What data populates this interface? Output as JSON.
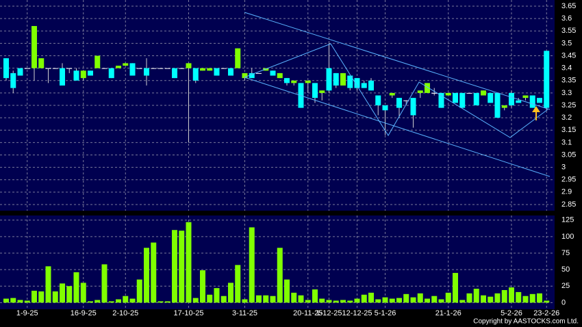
{
  "chart_data": {
    "type": "candlestick",
    "categories": [
      null,
      null,
      null,
      "1-9-25",
      null,
      null,
      null,
      null,
      null,
      null,
      null,
      "16-9-25",
      null,
      null,
      null,
      null,
      null,
      "2-10-25",
      null,
      null,
      null,
      null,
      null,
      null,
      null,
      null,
      "17-10-25",
      null,
      null,
      null,
      null,
      null,
      null,
      null,
      "3-11-25",
      null,
      null,
      null,
      null,
      null,
      null,
      null,
      null,
      "20-11-25",
      null,
      null,
      "1-12-25",
      null,
      null,
      null,
      "12-12-25",
      null,
      null,
      null,
      "5-1-26",
      null,
      null,
      null,
      null,
      null,
      null,
      null,
      null,
      "21-1-26",
      null,
      null,
      null,
      null,
      null,
      null,
      null,
      null,
      "5-2-26",
      null,
      null,
      null,
      null,
      "23-2-26"
    ],
    "open": [
      3.36,
      3.32,
      3.37,
      3.4,
      3.57,
      3.44,
      3.4,
      3.4,
      3.33,
      3.4,
      3.35,
      3.39,
      3.37,
      3.45,
      3.4,
      3.36,
      3.41,
      3.42,
      3.37,
      3.4,
      3.37,
      3.4,
      3.4,
      3.4,
      3.36,
      3.4,
      3.42,
      3.35,
      3.4,
      3.4,
      3.37,
      3.4,
      3.37,
      3.48,
      3.38,
      3.36,
      3.38,
      3.4,
      3.37,
      3.38,
      3.34,
      3.35,
      3.24,
      3.35,
      3.28,
      3.31,
      3.31,
      3.33,
      3.38,
      3.32,
      3.32,
      3.32,
      3.31,
      3.25,
      3.23,
      3.3,
      3.24,
      3.27,
      3.21,
      3.31,
      3.34,
      3.3,
      3.24,
      3.3,
      3.26,
      3.24,
      3.3,
      3.25,
      3.31,
      3.26,
      3.2,
      3.25,
      3.25,
      3.26,
      3.29,
      3.24,
      3.26,
      3.24
    ],
    "high": [
      3.44,
      3.39,
      3.4,
      3.4,
      3.57,
      3.44,
      3.4,
      3.4,
      3.42,
      3.4,
      3.4,
      3.39,
      3.39,
      3.45,
      3.4,
      3.4,
      3.41,
      3.42,
      3.42,
      3.4,
      3.44,
      3.4,
      3.4,
      3.4,
      3.4,
      3.4,
      3.42,
      3.4,
      3.4,
      3.4,
      3.4,
      3.4,
      3.4,
      3.48,
      3.38,
      3.4,
      3.38,
      3.4,
      3.39,
      3.38,
      3.36,
      3.35,
      3.34,
      3.35,
      3.34,
      3.31,
      3.5,
      3.38,
      3.38,
      3.37,
      3.36,
      3.35,
      3.36,
      3.29,
      3.25,
      3.3,
      3.28,
      3.27,
      3.28,
      3.31,
      3.34,
      3.32,
      3.3,
      3.3,
      3.3,
      3.3,
      3.3,
      3.3,
      3.31,
      3.3,
      3.3,
      3.25,
      3.31,
      3.28,
      3.29,
      3.29,
      3.28,
      3.47
    ],
    "low": [
      3.35,
      3.3,
      3.37,
      3.4,
      3.35,
      3.4,
      3.34,
      3.4,
      3.33,
      3.38,
      3.35,
      3.35,
      3.37,
      3.4,
      3.4,
      3.36,
      3.4,
      3.41,
      3.37,
      3.4,
      3.33,
      3.4,
      3.4,
      3.4,
      3.36,
      3.4,
      3.1,
      3.34,
      3.39,
      3.39,
      3.37,
      3.4,
      3.37,
      3.4,
      3.35,
      3.36,
      3.38,
      3.39,
      3.37,
      3.36,
      3.33,
      3.33,
      3.24,
      3.3,
      3.26,
      3.27,
      3.3,
      3.32,
      3.33,
      3.31,
      3.31,
      3.32,
      3.31,
      3.21,
      3.13,
      3.28,
      3.2,
      3.25,
      3.16,
      3.28,
      3.3,
      3.29,
      3.24,
      3.29,
      3.26,
      3.24,
      3.3,
      3.25,
      3.29,
      3.26,
      3.2,
      3.23,
      3.24,
      3.26,
      3.27,
      3.24,
      3.26,
      3.23
    ],
    "close": [
      3.44,
      3.38,
      3.4,
      3.4,
      3.4,
      3.4,
      3.4,
      3.4,
      3.4,
      3.4,
      3.39,
      3.36,
      3.39,
      3.4,
      3.4,
      3.4,
      3.4,
      3.41,
      3.42,
      3.4,
      3.4,
      3.4,
      3.4,
      3.4,
      3.4,
      3.4,
      3.4,
      3.4,
      3.39,
      3.39,
      3.4,
      3.4,
      3.4,
      3.4,
      3.36,
      3.38,
      3.38,
      3.39,
      3.39,
      3.36,
      3.36,
      3.34,
      3.34,
      3.34,
      3.34,
      3.3,
      3.4,
      3.38,
      3.33,
      3.37,
      3.36,
      3.34,
      3.35,
      3.29,
      3.25,
      3.29,
      3.28,
      3.27,
      3.28,
      3.3,
      3.3,
      3.3,
      3.3,
      3.29,
      3.3,
      3.3,
      3.3,
      3.3,
      3.29,
      3.3,
      3.3,
      3.24,
      3.3,
      3.27,
      3.28,
      3.29,
      3.28,
      3.47
    ],
    "volume": [
      6,
      7,
      4,
      3,
      18,
      17,
      55,
      17,
      29,
      25,
      46,
      30,
      2,
      4,
      58,
      2,
      5,
      10,
      6,
      35,
      83,
      91,
      2,
      2,
      110,
      109,
      122,
      7,
      49,
      12,
      22,
      10,
      30,
      57,
      5,
      114,
      11,
      11,
      10,
      83,
      35,
      15,
      11,
      4,
      20,
      6,
      4,
      3,
      4,
      3,
      6,
      12,
      15,
      5,
      8,
      6,
      7,
      13,
      8,
      14,
      6,
      10,
      5,
      15,
      45,
      4,
      14,
      21,
      11,
      9,
      14,
      19,
      23,
      16,
      10,
      13,
      14,
      3
    ],
    "ylim": [
      2.825,
      3.675
    ],
    "yticks": [
      2.85,
      2.9,
      2.95,
      3,
      3.05,
      3.1,
      3.15,
      3.2,
      3.25,
      3.3,
      3.35,
      3.4,
      3.45,
      3.5,
      3.55,
      3.6,
      3.65
    ],
    "volume_ylim": [
      -10,
      132
    ],
    "volume_yticks": [
      0,
      25,
      50,
      75,
      100,
      125
    ],
    "up_color": "#00ffff",
    "down_color": "#80ff00",
    "doji_color": "#ffffff",
    "volume_color": "#80ff00",
    "grid": true,
    "annotation": "Copyright by AASTOCKS.com Ltd."
  }
}
